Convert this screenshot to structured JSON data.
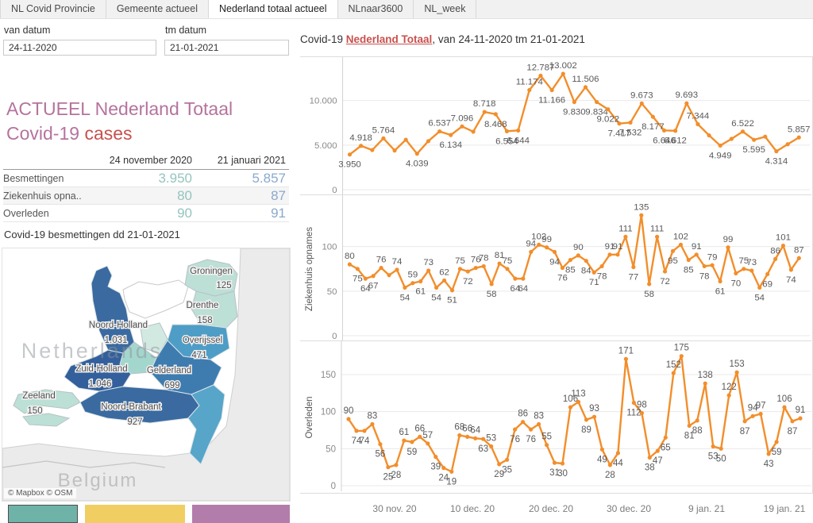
{
  "tabs": {
    "items": [
      {
        "label": "NL Covid Provincie",
        "active": false
      },
      {
        "label": "Gemeente actueel",
        "active": false
      },
      {
        "label": "Nederland totaal actueel",
        "active": true
      },
      {
        "label": "NLnaar3600",
        "active": false
      },
      {
        "label": "NL_week",
        "active": false
      }
    ]
  },
  "filters": {
    "van_label": "van datum",
    "van_value": "24-11-2020",
    "tm_label": "tm datum",
    "tm_value": "21-01-2021"
  },
  "summary": {
    "title_line1": "ACTUEEL Nederland Totaal",
    "title_line2_prefix": "Covid-19 ",
    "title_line2_accent": "cases",
    "table": {
      "col1": "24 november 2020",
      "col2": "21 januari 2021",
      "rows": [
        {
          "label": "Besmettingen",
          "v1": "3.950",
          "v2": "5.857"
        },
        {
          "label": "Ziekenhuis opna..",
          "v1": "80",
          "v2": "87"
        },
        {
          "label": "Overleden",
          "v1": "90",
          "v2": "91"
        }
      ]
    }
  },
  "map": {
    "title": "Covid-19 besmettingen dd 21-01-2021",
    "watermark": "Netherlands",
    "watermark2": "Belgium",
    "attribution": "© Mapbox  © OSM",
    "provinces": [
      {
        "name": "Groningen",
        "value": "125"
      },
      {
        "name": "Drenthe",
        "value": "158"
      },
      {
        "name": "Noord-Holland",
        "value": "1.031"
      },
      {
        "name": "Overijssel",
        "value": "471"
      },
      {
        "name": "Zuid-Holland",
        "value": "1.046"
      },
      {
        "name": "Gelderland",
        "value": "699"
      },
      {
        "name": "Zeeland",
        "value": "150"
      },
      {
        "name": "Noord-Brabant",
        "value": "927"
      }
    ]
  },
  "legend": {
    "colors": [
      "#6fb2a8",
      "#f0ce62",
      "#b27daa"
    ]
  },
  "chart_title": {
    "prefix": "Covid-19 ",
    "accent": "Nederland Totaal",
    "suffix": ", van 24-11-2020 tm 21-01-2021"
  },
  "chart_data": {
    "type": "line",
    "title": "Covid-19 Nederland Totaal, van 24-11-2020 tm 21-01-2021",
    "x_range": [
      "24-11-2020",
      "21-01-2021"
    ],
    "x_ticks": [
      "30 nov. 20",
      "10 dec. 20",
      "20 dec. 20",
      "30 dec. 20",
      "9 jan. 21",
      "19 jan. 21"
    ],
    "line_color": "#f28e2b",
    "panels": [
      {
        "name": "Besmettingen",
        "ylabel": "",
        "ylim": [
          0,
          14500
        ],
        "yticks": [
          [
            0,
            "0"
          ],
          [
            5000,
            "5.000"
          ],
          [
            10000,
            "10.000"
          ]
        ],
        "points": [
          [
            "3.950",
            3950,
            "b"
          ],
          [
            "4.918",
            4918,
            "a"
          ],
          [
            null,
            4450
          ],
          [
            "5.764",
            5764,
            "a"
          ],
          [
            null,
            4400
          ],
          [
            null,
            5600
          ],
          [
            "4.039",
            4039,
            "b"
          ],
          [
            null,
            5450
          ],
          [
            "6.537",
            6537,
            "a"
          ],
          [
            "6.134",
            6134,
            "b"
          ],
          [
            "7.096",
            7096,
            "a"
          ],
          [
            null,
            6500
          ],
          [
            "8.718",
            8718,
            "a"
          ],
          [
            "8.468",
            8468,
            "b"
          ],
          [
            "6.554",
            6554,
            "b"
          ],
          [
            "6.644",
            6644,
            "b"
          ],
          [
            "11.174",
            11174,
            "a"
          ],
          [
            "12.787",
            12787,
            "a"
          ],
          [
            "11.166",
            11166,
            "b"
          ],
          [
            "13.002",
            13002,
            "a"
          ],
          [
            "9.830",
            9830,
            "b"
          ],
          [
            "11.506",
            11506,
            "a"
          ],
          [
            "9.834",
            9834,
            "b"
          ],
          [
            "9.022",
            9022,
            "b"
          ],
          [
            "7.417",
            7417,
            "b"
          ],
          [
            "7.532",
            7532,
            "b"
          ],
          [
            "9.673",
            9673,
            "a"
          ],
          [
            "8.177",
            8177,
            "b"
          ],
          [
            "6.646",
            6646,
            "b"
          ],
          [
            "6.612",
            6612,
            "b"
          ],
          [
            "9.693",
            9693,
            "a"
          ],
          [
            "7.344",
            7344,
            "a"
          ],
          [
            null,
            6100
          ],
          [
            "4.949",
            4949,
            "b"
          ],
          [
            null,
            5700
          ],
          [
            "6.522",
            6522,
            "a"
          ],
          [
            "5.595",
            5595,
            "b"
          ],
          [
            null,
            5950
          ],
          [
            "4.314",
            4314,
            "b"
          ],
          [
            null,
            5100
          ],
          [
            "5.857",
            5857,
            "a"
          ]
        ]
      },
      {
        "name": "Ziekenhuis opnames",
        "ylabel": "Ziekenhuis opnames",
        "ylim": [
          0,
          155
        ],
        "yticks": [
          [
            0,
            "0"
          ],
          [
            50,
            "50"
          ],
          [
            100,
            "100"
          ]
        ],
        "points": [
          [
            "80",
            80,
            "a"
          ],
          [
            "75",
            75,
            "b"
          ],
          [
            "64",
            64,
            "b"
          ],
          [
            "67",
            67,
            "b"
          ],
          [
            "76",
            76,
            "a"
          ],
          [
            null,
            68
          ],
          [
            "74",
            74,
            "a"
          ],
          [
            "54",
            54,
            "b"
          ],
          [
            "59",
            59,
            "a"
          ],
          [
            "61",
            61,
            "b"
          ],
          [
            "73",
            73,
            "a"
          ],
          [
            "54",
            54,
            "b"
          ],
          [
            "62",
            62,
            "a"
          ],
          [
            "51",
            51,
            "b"
          ],
          [
            "75",
            75,
            "a"
          ],
          [
            "72",
            72,
            "b"
          ],
          [
            "76",
            76,
            "a"
          ],
          [
            "78",
            78,
            "a"
          ],
          [
            "58",
            58,
            "b"
          ],
          [
            "81",
            81,
            "a"
          ],
          [
            "75",
            75,
            "a"
          ],
          [
            "64",
            64,
            "b"
          ],
          [
            "64",
            64,
            "b"
          ],
          [
            "94",
            94,
            "a"
          ],
          [
            "102",
            102,
            "a"
          ],
          [
            "99",
            99,
            "a"
          ],
          [
            "94",
            94,
            "b"
          ],
          [
            "76",
            76,
            "b"
          ],
          [
            "85",
            85,
            "b"
          ],
          [
            "90",
            90,
            "a"
          ],
          [
            "84",
            84,
            "b"
          ],
          [
            "71",
            71,
            "b"
          ],
          [
            "78",
            78,
            "b"
          ],
          [
            "91",
            91,
            "a"
          ],
          [
            "91",
            91,
            "a"
          ],
          [
            "111",
            111,
            "a"
          ],
          [
            "77",
            77,
            "b"
          ],
          [
            "135",
            135,
            "a"
          ],
          [
            "58",
            58,
            "b"
          ],
          [
            "111",
            111,
            "a"
          ],
          [
            "72",
            72,
            "b"
          ],
          [
            "95",
            95,
            "b"
          ],
          [
            "102",
            102,
            "a"
          ],
          [
            "85",
            85,
            "b"
          ],
          [
            "91",
            91,
            "a"
          ],
          [
            "78",
            78,
            "b"
          ],
          [
            "79",
            79,
            "a"
          ],
          [
            "61",
            61,
            "b"
          ],
          [
            "99",
            99,
            "a"
          ],
          [
            "70",
            70,
            "b"
          ],
          [
            "75",
            75,
            "a"
          ],
          [
            "73",
            73,
            "a"
          ],
          [
            "54",
            54,
            "b"
          ],
          [
            "69",
            69,
            "b"
          ],
          [
            "86",
            86,
            "a"
          ],
          [
            "101",
            101,
            "a"
          ],
          [
            "74",
            74,
            "b"
          ],
          [
            "87",
            87,
            "a"
          ]
        ]
      },
      {
        "name": "Overleden",
        "ylabel": "Overleden",
        "ylim": [
          0,
          190
        ],
        "yticks": [
          [
            0,
            "0"
          ],
          [
            50,
            "50"
          ],
          [
            100,
            "100"
          ],
          [
            150,
            "150"
          ]
        ],
        "points": [
          [
            "90",
            90,
            "a"
          ],
          [
            "74",
            74,
            "b"
          ],
          [
            "74",
            74,
            "b"
          ],
          [
            "83",
            83,
            "a"
          ],
          [
            "56",
            56,
            "b"
          ],
          [
            "25",
            25,
            "b"
          ],
          [
            "28",
            28,
            "b"
          ],
          [
            "61",
            61,
            "a"
          ],
          [
            "59",
            59,
            "b"
          ],
          [
            "66",
            66,
            "a"
          ],
          [
            "57",
            57,
            "a"
          ],
          [
            "39",
            39,
            "b"
          ],
          [
            "24",
            24,
            "b"
          ],
          [
            "19",
            19,
            "b"
          ],
          [
            "68",
            68,
            "a"
          ],
          [
            "66",
            66,
            "a"
          ],
          [
            "64",
            64,
            "a"
          ],
          [
            "63",
            63,
            "b"
          ],
          [
            "53",
            53,
            "a"
          ],
          [
            "29",
            29,
            "b"
          ],
          [
            "35",
            35,
            "b"
          ],
          [
            "76",
            76,
            "b"
          ],
          [
            "86",
            86,
            "a"
          ],
          [
            "76",
            76,
            "b"
          ],
          [
            "83",
            83,
            "a"
          ],
          [
            "55",
            55,
            "a"
          ],
          [
            "31",
            31,
            "b"
          ],
          [
            "30",
            30,
            "b"
          ],
          [
            "106",
            106,
            "a"
          ],
          [
            "113",
            113,
            "a"
          ],
          [
            "89",
            89,
            "b"
          ],
          [
            "93",
            93,
            "a"
          ],
          [
            "49",
            49,
            "b"
          ],
          [
            "28",
            28,
            "b"
          ],
          [
            "44",
            44,
            "b"
          ],
          [
            "171",
            171,
            "a"
          ],
          [
            "112",
            112,
            "b"
          ],
          [
            "98",
            98,
            "a"
          ],
          [
            "38",
            38,
            "b"
          ],
          [
            "47",
            47,
            "b"
          ],
          [
            "65",
            65,
            "b"
          ],
          [
            "152",
            152,
            "a"
          ],
          [
            "175",
            175,
            "a"
          ],
          [
            "81",
            81,
            "b"
          ],
          [
            "88",
            88,
            "b"
          ],
          [
            "138",
            138,
            "a"
          ],
          [
            "53",
            53,
            "b"
          ],
          [
            "50",
            50,
            "b"
          ],
          [
            "122",
            122,
            "a"
          ],
          [
            "153",
            153,
            "a"
          ],
          [
            "87",
            87,
            "b"
          ],
          [
            "94",
            94,
            "a"
          ],
          [
            "97",
            97,
            "a"
          ],
          [
            "43",
            43,
            "b"
          ],
          [
            "59",
            59,
            "b"
          ],
          [
            "106",
            106,
            "a"
          ],
          [
            "87",
            87,
            "b"
          ],
          [
            "91",
            91,
            "a"
          ]
        ]
      }
    ]
  }
}
